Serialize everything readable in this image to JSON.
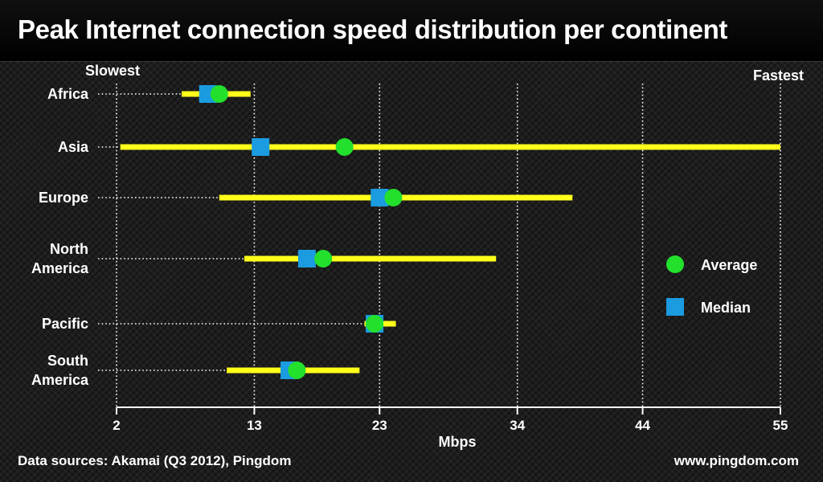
{
  "title": "Peak Internet connection speed distribution per continent",
  "footer": {
    "source": "Data sources: Akamai (Q3 2012), Pingdom",
    "site": "www.pingdom.com"
  },
  "chart_data": {
    "type": "range",
    "slowest_label": "Slowest",
    "fastest_label": "Fastest",
    "xlabel": "Mbps",
    "xlim": [
      2,
      55
    ],
    "xticks": [
      2,
      13,
      23,
      34,
      44,
      55
    ],
    "grid": "vertical dotted",
    "legend": {
      "placement": "right",
      "items": [
        {
          "name": "Average",
          "shape": "circle",
          "color": "#22e02c"
        },
        {
          "name": "Median",
          "shape": "square",
          "color": "#1b9be0"
        }
      ]
    },
    "colors": {
      "range": "#ffff1a",
      "average": "#22e02c",
      "median": "#1b9be0"
    },
    "categories": [
      {
        "label": [
          "Africa"
        ],
        "min": 7.2,
        "max": 12.7,
        "median": 9.3,
        "average": 10.2
      },
      {
        "label": [
          "Asia"
        ],
        "min": 2.3,
        "max": 55,
        "median": 13.5,
        "average": 20.2
      },
      {
        "label": [
          "Europe"
        ],
        "min": 10.2,
        "max": 38.4,
        "median": 23.0,
        "average": 24.1
      },
      {
        "label": [
          "North",
          "America"
        ],
        "min": 12.2,
        "max": 32.3,
        "median": 17.2,
        "average": 18.5
      },
      {
        "label": [
          "Pacific"
        ],
        "min": 21.8,
        "max": 24.3,
        "median": 22.6,
        "average": 22.6
      },
      {
        "label": [
          "South",
          "America"
        ],
        "min": 10.8,
        "max": 21.4,
        "median": 15.8,
        "average": 16.4
      }
    ]
  }
}
